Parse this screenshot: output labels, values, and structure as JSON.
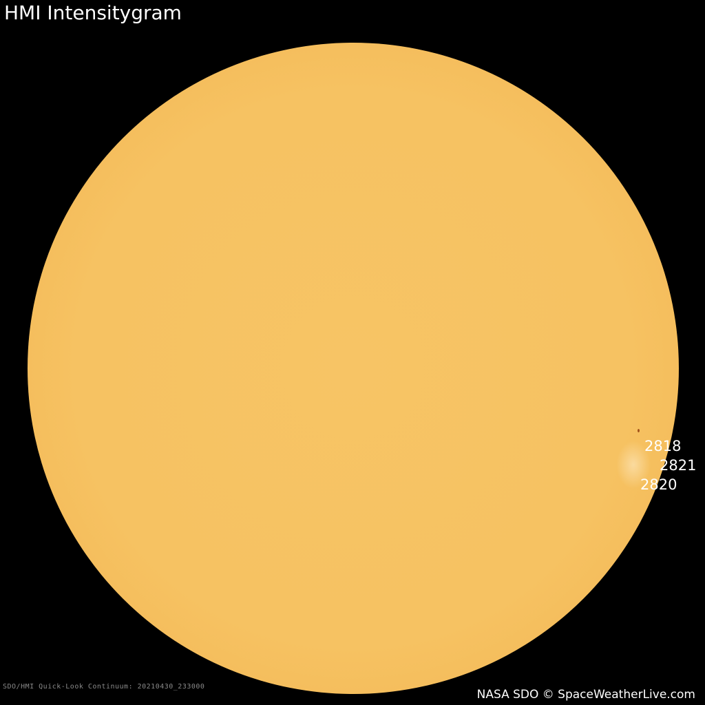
{
  "title": "HMI Intensitygram",
  "meta": "SDO/HMI Quick-Look Continuum: 20210430_233000",
  "credit": "NASA SDO © SpaceWeatherLive.com",
  "regions": [
    "2818",
    "2821",
    "2820"
  ],
  "colors": {
    "sun": "#f6c262",
    "background": "#000000",
    "sunspot": "#a0501a"
  }
}
